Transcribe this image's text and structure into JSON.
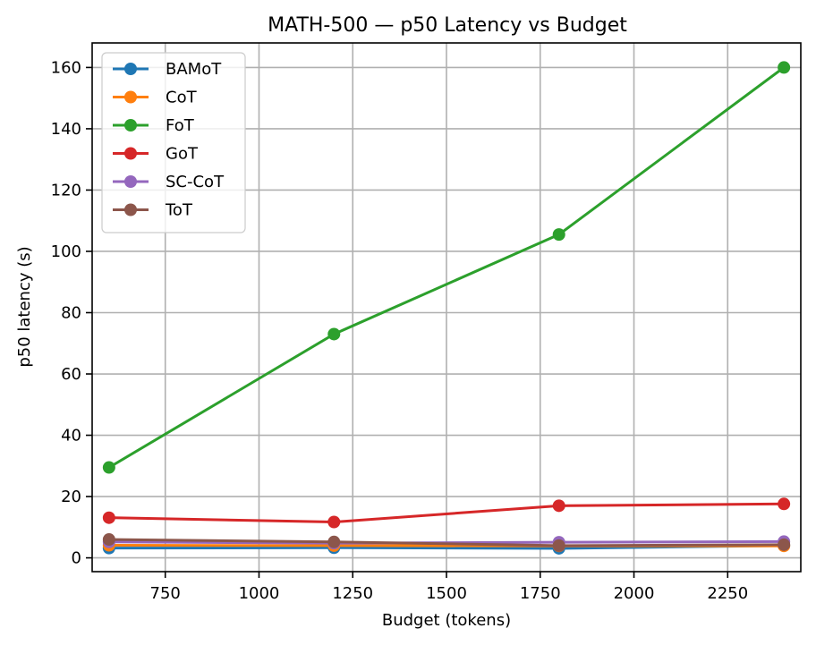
{
  "chart_data": {
    "type": "line",
    "title": "MATH-500 — p50 Latency vs Budget",
    "xlabel": "Budget (tokens)",
    "ylabel": "p50 latency (s)",
    "x": [
      600,
      1200,
      1800,
      2400
    ],
    "xlim": [
      555,
      2445
    ],
    "ylim": [
      -4.5,
      168
    ],
    "x_ticks": [
      750,
      1000,
      1250,
      1500,
      1750,
      2000,
      2250
    ],
    "y_ticks": [
      0,
      20,
      40,
      60,
      80,
      100,
      120,
      140,
      160
    ],
    "grid": true,
    "legend_position": "top-left",
    "series": [
      {
        "name": "BAMoT",
        "color": "#1f77b4",
        "values": [
          3.2,
          3.3,
          3.1,
          4.0
        ]
      },
      {
        "name": "CoT",
        "color": "#ff7f0e",
        "values": [
          4.1,
          4.0,
          3.9,
          3.9
        ]
      },
      {
        "name": "FoT",
        "color": "#2ca02c",
        "values": [
          29.5,
          73.0,
          105.5,
          160.0
        ]
      },
      {
        "name": "GoT",
        "color": "#d62728",
        "values": [
          13.1,
          11.7,
          17.0,
          17.6
        ]
      },
      {
        "name": "SC-CoT",
        "color": "#9467bd",
        "values": [
          5.2,
          4.8,
          5.1,
          5.3
        ]
      },
      {
        "name": "ToT",
        "color": "#8c564b",
        "values": [
          6.0,
          5.2,
          4.0,
          4.3
        ]
      }
    ]
  }
}
